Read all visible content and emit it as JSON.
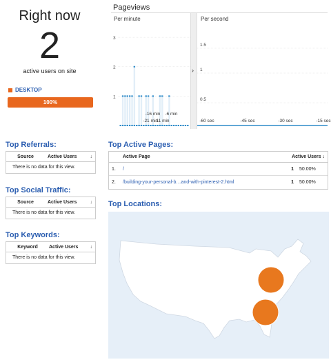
{
  "summary": {
    "title": "Right now",
    "active_count": "2",
    "caption": "active users on site",
    "device": {
      "label": "DESKTOP",
      "percent_label": "100%",
      "color": "#e8671e",
      "share": 1.0
    }
  },
  "pageviews": {
    "title": "Pageviews",
    "per_minute": {
      "label": "Per minute",
      "y_ticks": [
        "3",
        "2",
        "1"
      ],
      "x_ticks": [
        "-21 min",
        "-16 min",
        "-11 min",
        "-6 min"
      ],
      "values": [
        0,
        1,
        1,
        1,
        1,
        1,
        2,
        0,
        1,
        1,
        0,
        1,
        1,
        0,
        1,
        0,
        0,
        1,
        1,
        0,
        0,
        1,
        0,
        0,
        0,
        0,
        0,
        0,
        0,
        0
      ],
      "ylim": [
        0,
        3
      ]
    },
    "per_second": {
      "label": "Per second",
      "y_ticks": [
        "1.5",
        "1",
        "0.5"
      ],
      "x_ticks": [
        "-60 sec",
        "-45 sec",
        "-30 sec",
        "-15 sec"
      ]
    },
    "collapse_icon": "chevron-right-icon"
  },
  "referrals": {
    "title": "Top Referrals:",
    "col1": "Source",
    "col2": "Active Users",
    "empty": "There is no data for this view."
  },
  "social": {
    "title": "Top Social Traffic:",
    "col1": "Source",
    "col2": "Active Users",
    "empty": "There is no data for this view."
  },
  "keywords": {
    "title": "Top Keywords:",
    "col1": "Keyword",
    "col2": "Active Users",
    "empty": "There is no data for this view."
  },
  "active_pages": {
    "title": "Top Active Pages:",
    "col_page": "Active Page",
    "col_users": "Active Users",
    "rows": [
      {
        "num": "1.",
        "page": "/",
        "count": "1",
        "pct": "50.00%"
      },
      {
        "num": "2.",
        "page": "/building-your-personal-b…and-with-pinterest-2.html",
        "count": "1",
        "pct": "50.00%"
      }
    ]
  },
  "locations": {
    "title": "Top Locations:",
    "marker_color": "#e8781e",
    "map_color": "#ffffff",
    "ocean_color": "#e6eff8"
  }
}
